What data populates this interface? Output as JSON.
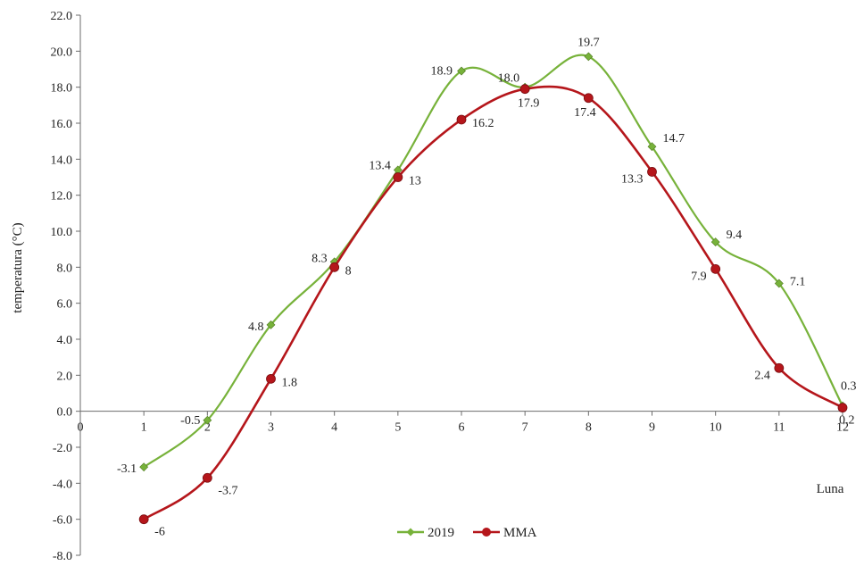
{
  "chart_data": {
    "type": "line",
    "xlabel": "Luna",
    "ylabel": "temperatura (°C)",
    "xlim": [
      0,
      12
    ],
    "ylim": [
      -8,
      22
    ],
    "x_ticks": [
      "0",
      "1",
      "2",
      "3",
      "4",
      "5",
      "6",
      "7",
      "8",
      "9",
      "10",
      "11",
      "12"
    ],
    "y_ticks": [
      "-8.0",
      "-6.0",
      "-4.0",
      "-2.0",
      "0.0",
      "2.0",
      "4.0",
      "6.0",
      "8.0",
      "10.0",
      "12.0",
      "14.0",
      "16.0",
      "18.0",
      "20.0",
      "22.0"
    ],
    "x": [
      1,
      2,
      3,
      4,
      5,
      6,
      7,
      8,
      9,
      10,
      11,
      12
    ],
    "legend_position": "bottom",
    "grid": false,
    "series": [
      {
        "name": "2019",
        "color": "#77b23a",
        "marker": "diamond",
        "values": [
          -3.1,
          -0.5,
          4.8,
          8.3,
          13.4,
          18.9,
          18.0,
          19.7,
          14.7,
          9.4,
          7.1,
          0.3
        ],
        "labels": [
          "-3.1",
          "-0.5",
          "4.8",
          "8.3",
          "13.4",
          "18.9",
          "18.0",
          "19.7",
          "14.7",
          "9.4",
          "7.1",
          "0.3"
        ]
      },
      {
        "name": "MMA",
        "color": "#b5161b",
        "marker": "circle",
        "values": [
          -6,
          -3.7,
          1.8,
          8,
          13,
          16.2,
          17.9,
          17.4,
          13.3,
          7.9,
          2.4,
          0.2
        ],
        "labels": [
          "-6",
          "-3.7",
          "1.8",
          "8",
          "13",
          "16.2",
          "17.9",
          "17.4",
          "13.3",
          "7.9",
          "2.4",
          "0.2"
        ]
      }
    ]
  }
}
